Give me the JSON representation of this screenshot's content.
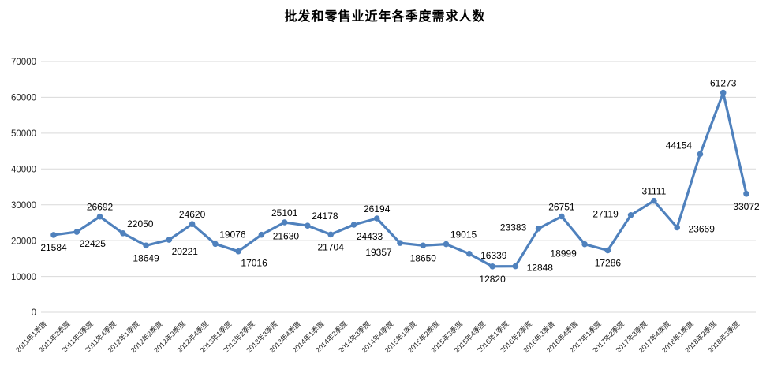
{
  "chart_data": {
    "type": "line",
    "title": "批发和零售业近年各季度需求人数",
    "categories": [
      "2011年1季度",
      "2011年2季度",
      "2011年3季度",
      "2011年4季度",
      "2012年1季度",
      "2012年2季度",
      "2012年3季度",
      "2012年4季度",
      "2013年1季度",
      "2013年2季度",
      "2013年3季度",
      "2013年4季度",
      "2014年1季度",
      "2014年2季度",
      "2014年3季度",
      "2014年4季度",
      "2015年1季度",
      "2015年2季度",
      "2015年3季度",
      "2015年4季度",
      "2016年1季度",
      "2016年2季度",
      "2016年3季度",
      "2016年4季度",
      "2017年1季度",
      "2017年2季度",
      "2017年3季度",
      "2017年4季度",
      "2018年1季度",
      "2018年2季度",
      "2018年3季度"
    ],
    "values": [
      21584,
      22425,
      26692,
      22050,
      18649,
      20221,
      24620,
      19076,
      17016,
      21630,
      25101,
      24178,
      21704,
      24433,
      26194,
      19357,
      18650,
      19015,
      16339,
      12820,
      12848,
      23383,
      26751,
      18999,
      17286,
      27119,
      31111,
      23669,
      44154,
      61273,
      33072
    ],
    "data_labels": true,
    "label_placement": [
      "below",
      "below-right",
      "above",
      "above-right",
      "below",
      "below-right",
      "above",
      "above-right",
      "below-right",
      "right",
      "above",
      "above-right",
      "below",
      "below-right",
      "above",
      "below-left",
      "below",
      "above-right",
      "right",
      "below",
      "right",
      "left",
      "above",
      "below-left",
      "below",
      "left",
      "above",
      "right",
      "above-left",
      "above",
      "below"
    ],
    "xlabel": "",
    "ylabel": "",
    "ylim": [
      0,
      70000
    ],
    "yticks": [
      0,
      10000,
      20000,
      30000,
      40000,
      50000,
      60000,
      70000
    ],
    "grid": "horizontal",
    "legend": "none",
    "x_tick_rotation": -45,
    "line_color": "#4F81BD",
    "marker": "circle",
    "gridline_color": "#D9D9D9",
    "data_label_color": "#000000",
    "axis_text_color": "#262626",
    "background": "#FFFFFF"
  }
}
